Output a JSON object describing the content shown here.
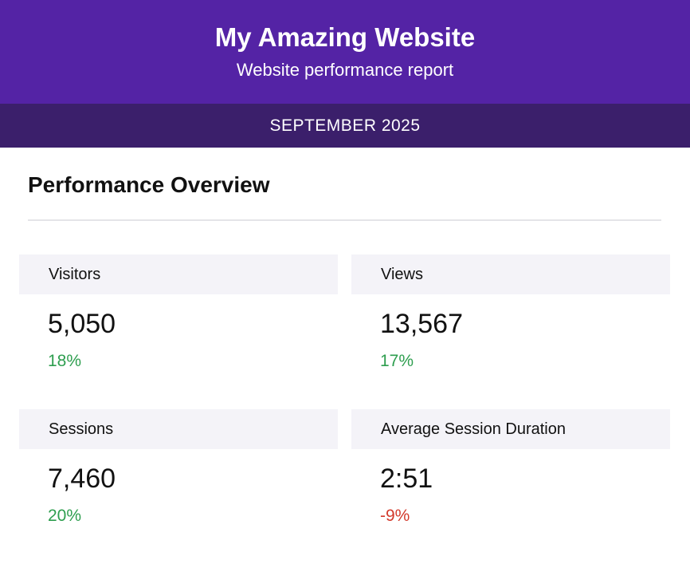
{
  "header": {
    "title": "My Amazing Website",
    "subtitle": "Website performance report"
  },
  "period": "SEPTEMBER 2025",
  "section_title": "Performance Overview",
  "metrics": [
    {
      "label": "Visitors",
      "value": "5,050",
      "change": "18%",
      "trend": "up"
    },
    {
      "label": "Views",
      "value": "13,567",
      "change": "17%",
      "trend": "up"
    },
    {
      "label": "Sessions",
      "value": "7,460",
      "change": "20%",
      "trend": "up"
    },
    {
      "label": "Average Session Duration",
      "value": "2:51",
      "change": "-9%",
      "trend": "down"
    }
  ],
  "colors": {
    "header_bg": "#5423a5",
    "period_bg": "#3b1f6b",
    "positive": "#2e9e4f",
    "negative": "#d33a2c"
  }
}
